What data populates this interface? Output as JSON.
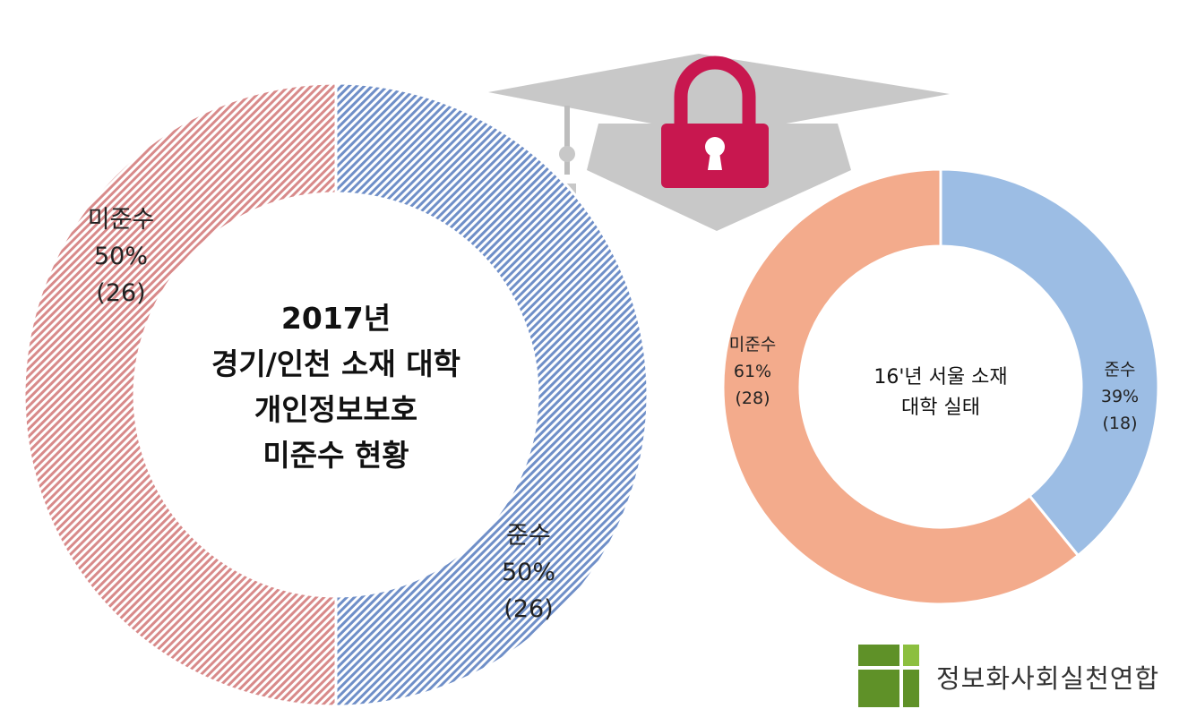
{
  "chart_data": [
    {
      "type": "pie",
      "title": "2017년",
      "subtitle_lines": [
        "경기/인천 소재 대학",
        "개인정보보호",
        "미준수 현황"
      ],
      "slices": [
        {
          "label": "준수",
          "percent": "50%",
          "count": "(26)",
          "value": 26,
          "color": "#6f8fc8"
        },
        {
          "label": "미준수",
          "percent": "50%",
          "count": "(26)",
          "value": 26,
          "color": "#d88a8a"
        }
      ]
    },
    {
      "type": "pie",
      "title_lines": [
        "16'년 서울 소재",
        "대학 실태"
      ],
      "slices": [
        {
          "label": "준수",
          "percent": "39%",
          "count": "(18)",
          "value": 18,
          "color": "#9cbde4"
        },
        {
          "label": "미준수",
          "percent": "61%",
          "count": "(28)",
          "value": 28,
          "color": "#f3ab8c"
        }
      ]
    }
  ],
  "decoration": {
    "icons": [
      "graduation-cap-icon",
      "padlock-icon"
    ],
    "lock_color": "#c8174f",
    "cap_color": "#c8c8c8"
  },
  "logo": {
    "org_name": "정보화사회실천연합",
    "colors": [
      "#4e7d1e",
      "#8cbf3f"
    ]
  }
}
